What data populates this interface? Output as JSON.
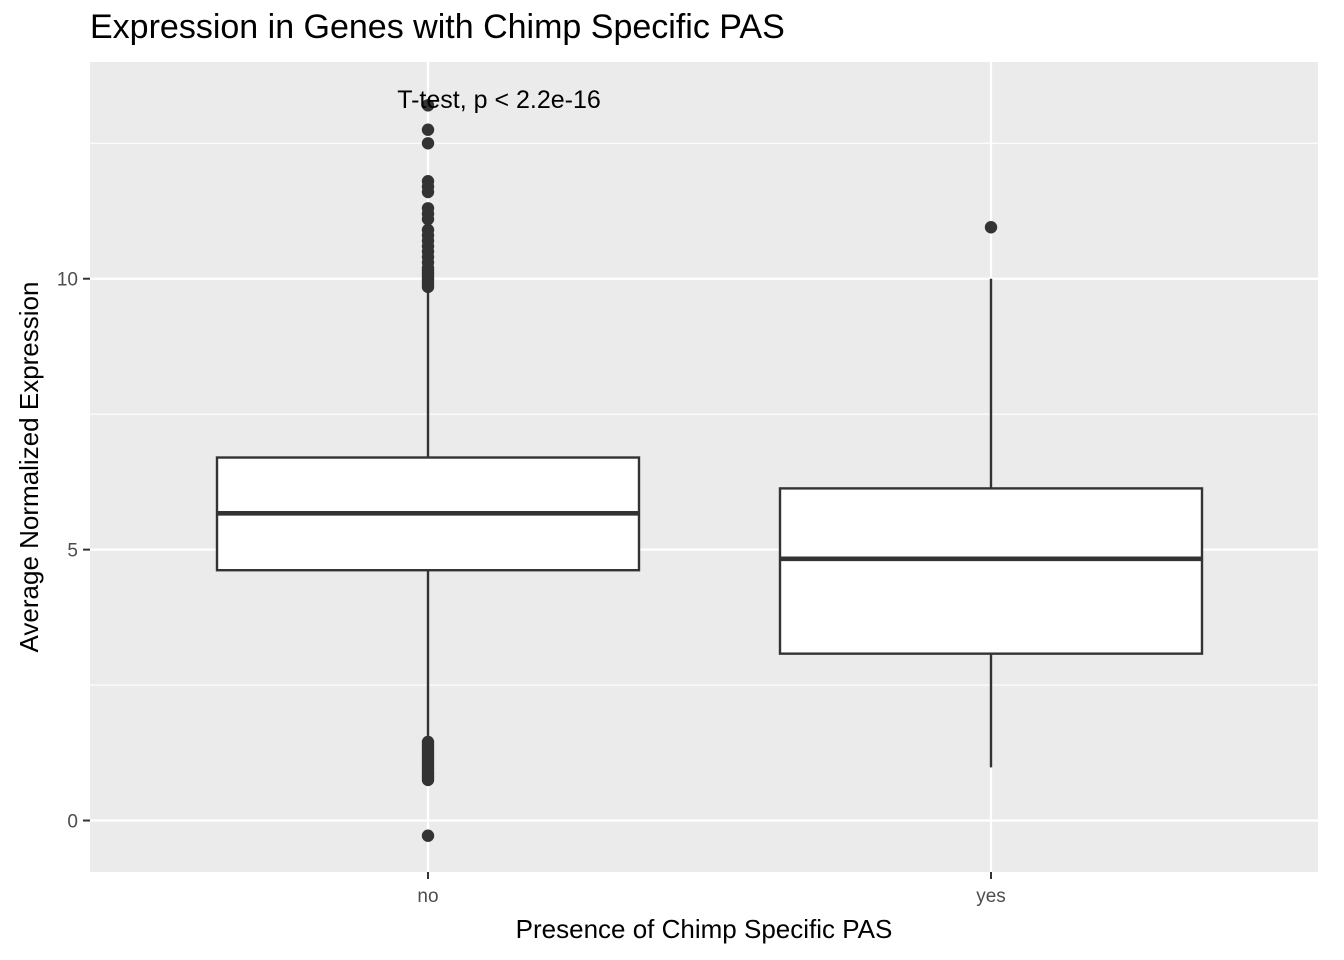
{
  "chart_data": {
    "type": "boxplot",
    "title": "Expression in Genes with Chimp Specific PAS",
    "xlabel": "Presence of Chimp Specific PAS",
    "ylabel": "Average Normalized Expression",
    "categories": [
      "no",
      "yes"
    ],
    "ylim": [
      -0.95,
      14.0
    ],
    "yticks": [
      0,
      5,
      10
    ],
    "grid": true,
    "legend": "none",
    "annotation": "T-test, p < 2.2e-16",
    "boxes": [
      {
        "category": "no",
        "lower_whisker": 1.5,
        "q1": 4.62,
        "median": 5.67,
        "q3": 6.7,
        "upper_whisker": 9.8,
        "outliers": [
          -0.28,
          0.75,
          0.8,
          0.85,
          0.9,
          0.95,
          1.0,
          1.05,
          1.1,
          1.15,
          1.2,
          1.25,
          1.3,
          1.35,
          1.4,
          1.45,
          9.85,
          9.9,
          9.95,
          10.0,
          10.05,
          10.1,
          10.15,
          10.2,
          10.3,
          10.4,
          10.5,
          10.6,
          10.7,
          10.8,
          10.9,
          11.1,
          11.2,
          11.3,
          11.6,
          11.7,
          11.8,
          12.5,
          12.75,
          13.2
        ]
      },
      {
        "category": "yes",
        "lower_whisker": 0.98,
        "q1": 3.08,
        "median": 4.83,
        "q3": 6.13,
        "upper_whisker": 10.0,
        "outliers": [
          10.95
        ]
      }
    ]
  }
}
